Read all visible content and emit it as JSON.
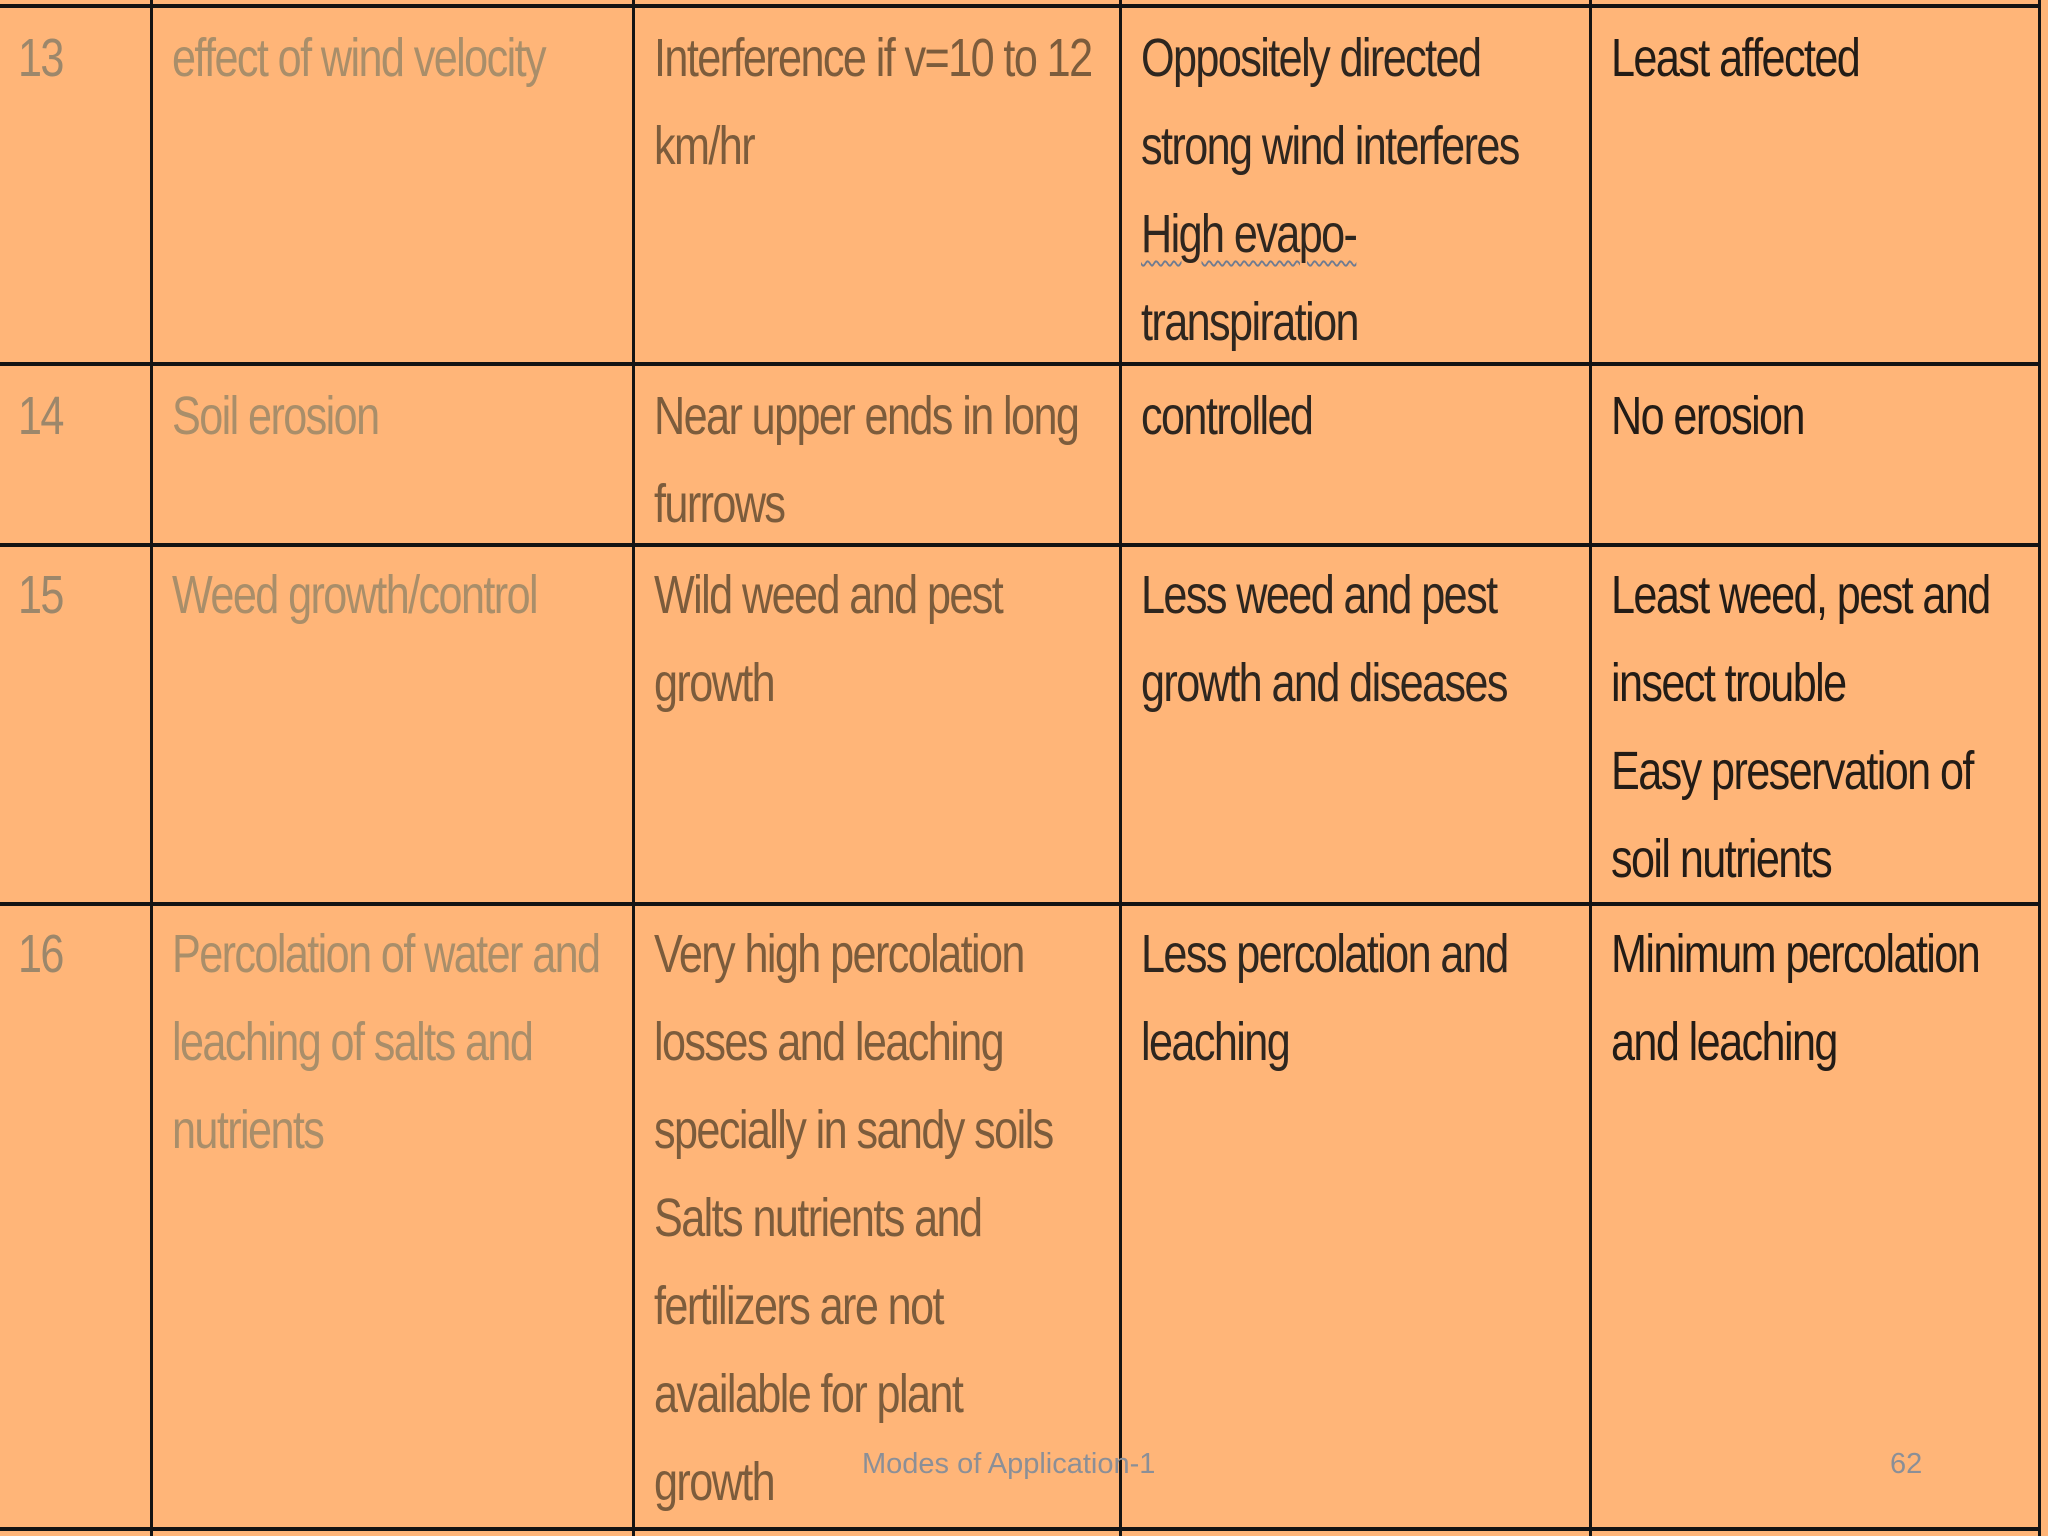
{
  "colors": {
    "background": "#FFB578",
    "grid_line": "#141414",
    "serial_text": "#9C876B",
    "parameter_text": "#A98E6A",
    "surface_text": "#7C5C3C",
    "sprinkler_text": "#2E261F",
    "drip_text": "#231C16",
    "footer_text": "#8B8F97"
  },
  "table": {
    "rows": [
      {
        "sn": "13",
        "parameter": [
          "effect of wind velocity"
        ],
        "surface": [
          "Interference if v=10 to 12",
          "km/hr"
        ],
        "sprinkler": [
          "Oppositely directed",
          "strong wind interferes",
          "High evapo-",
          "transpiration"
        ],
        "drip": [
          "Least affected"
        ]
      },
      {
        "sn": "14",
        "parameter": [
          "Soil erosion"
        ],
        "surface": [
          "Near upper ends in long",
          "furrows"
        ],
        "sprinkler": [
          "controlled"
        ],
        "drip": [
          "No erosion"
        ]
      },
      {
        "sn": "15",
        "parameter": [
          "Weed growth/control"
        ],
        "surface": [
          "Wild weed and pest",
          "growth"
        ],
        "sprinkler": [
          "Less weed and pest",
          "growth and diseases"
        ],
        "drip": [
          "Least weed, pest and",
          "insect trouble",
          "Easy preservation of",
          "soil nutrients"
        ]
      },
      {
        "sn": "16",
        "parameter": [
          "Percolation of water and",
          "leaching of salts and",
          "nutrients"
        ],
        "surface": [
          "Very high percolation",
          "losses and leaching",
          "specially in sandy soils",
          "Salts nutrients and",
          "fertilizers are not",
          "available for plant",
          "growth"
        ],
        "sprinkler": [
          "Less percolation and",
          "leaching"
        ],
        "drip": [
          "Minimum percolation",
          "and leaching"
        ]
      }
    ]
  },
  "footer": {
    "title": "Modes of Application-1",
    "page_number": "62"
  }
}
